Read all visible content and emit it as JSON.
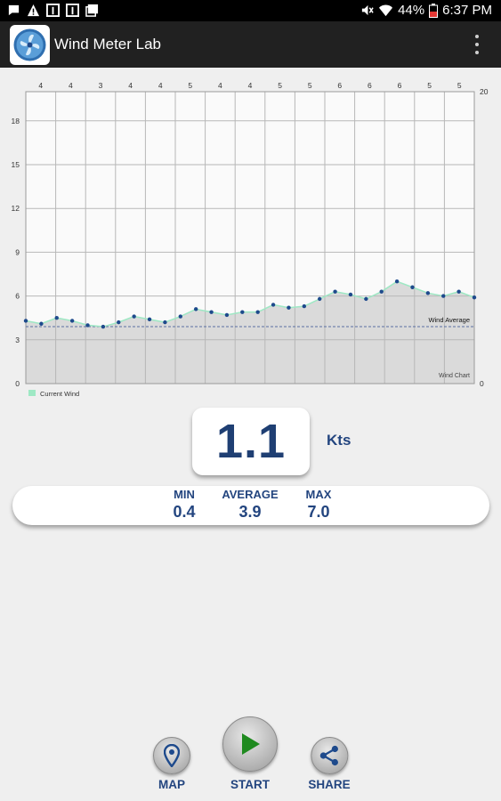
{
  "status_bar": {
    "battery": "44%",
    "time": "6:37 PM"
  },
  "app_bar": {
    "title": "Wind Meter Lab",
    "logo_icon": "fan-icon",
    "menu_icon": "overflow-menu-icon"
  },
  "chart_data": {
    "type": "area",
    "x": [
      1,
      2,
      3,
      4,
      5,
      6,
      7,
      8,
      9,
      10,
      11,
      12,
      13,
      14,
      15,
      16,
      17,
      18,
      19,
      20,
      21,
      22,
      23,
      24,
      25,
      26,
      27,
      28,
      29,
      30
    ],
    "series": [
      {
        "name": "Current Wind",
        "values": [
          4.3,
          4.1,
          4.5,
          4.3,
          4.0,
          3.9,
          4.2,
          4.6,
          4.4,
          4.2,
          4.6,
          5.1,
          4.9,
          4.7,
          4.9,
          4.9,
          5.4,
          5.2,
          5.3,
          5.8,
          6.3,
          6.1,
          5.8,
          6.3,
          7.0,
          6.6,
          6.2,
          6.0,
          6.3,
          5.9
        ]
      }
    ],
    "average": 3.9,
    "average_label": "Wind Average",
    "direction_labels": [
      "4",
      "4",
      "3",
      "4",
      "4",
      "5",
      "4",
      "4",
      "5",
      "5",
      "6",
      "6",
      "6",
      "5",
      "5"
    ],
    "y_ticks": [
      "0",
      "3",
      "6",
      "9",
      "12",
      "15",
      "18"
    ],
    "right_ticks": [
      "0",
      "20"
    ],
    "ylim": [
      0,
      20
    ],
    "chart_label": "Wind Chart",
    "grid": true,
    "legend_position": "bottom-left",
    "colors": {
      "fill": "#dadada",
      "line": "#9ee8c4",
      "point": "#1e4a8c",
      "average": "#5a6fa3"
    }
  },
  "reading": {
    "value": "1.1",
    "unit": "Kts"
  },
  "stats": [
    {
      "label": "MIN",
      "value": "0.4"
    },
    {
      "label": "AVERAGE",
      "value": "3.9"
    },
    {
      "label": "MAX",
      "value": "7.0"
    }
  ],
  "actions": {
    "map": "MAP",
    "start": "START",
    "share": "SHARE"
  },
  "colors": {
    "accent": "#23457f",
    "start_icon": "#1f8a1f"
  }
}
